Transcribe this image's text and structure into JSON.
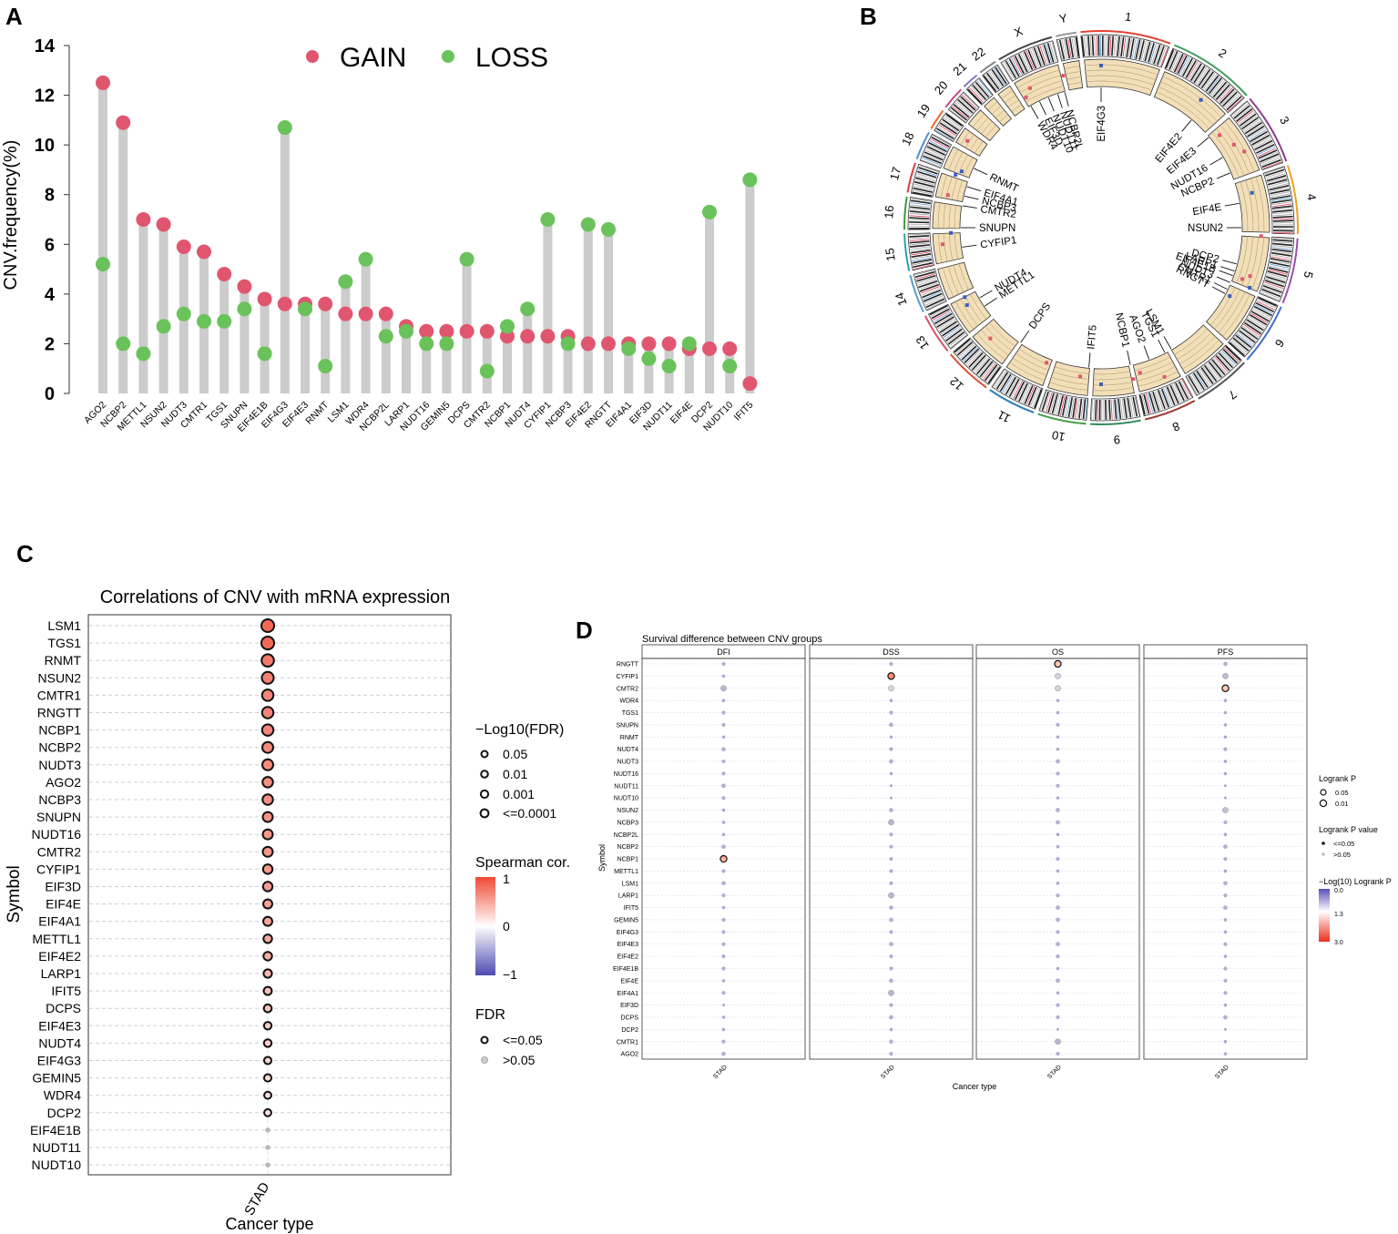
{
  "panel_labels": {
    "a": "A",
    "b": "B",
    "c": "C",
    "d": "D"
  },
  "colors": {
    "gain": "#e0566f",
    "loss": "#6ac25a",
    "stem": "#cccccc",
    "panel_border": "#333333",
    "grid": "#cfcfcf",
    "cor_high": "#ef4a35",
    "cor_mid": "#ffffff",
    "cor_low": "#4b4bb0",
    "ns_point": "#bbbbbb",
    "track_fill": "#f2dfb8"
  },
  "chart_data": [
    {
      "id": "A",
      "type": "scatter",
      "title": "",
      "xlabel": "",
      "ylabel": "CNV.frequency(%)",
      "ylim": [
        0,
        14
      ],
      "yticks": [
        0,
        2,
        4,
        6,
        8,
        10,
        12,
        14
      ],
      "legend": [
        "GAIN",
        "LOSS"
      ],
      "categories": [
        "AGO2",
        "NCBP2",
        "METTL1",
        "NSUN2",
        "NUDT3",
        "CMTR1",
        "TGS1",
        "SNUPN",
        "EIF4E1B",
        "EIF4G3",
        "EIF4E3",
        "RNMT",
        "LSM1",
        "WDR4",
        "NCBP2L",
        "LARP1",
        "NUDT16",
        "GEMIN5",
        "DCPS",
        "CMTR2",
        "NCBP1",
        "NUDT4",
        "CYFIP1",
        "NCBP3",
        "EIF4E2",
        "RNGTT",
        "EIF4A1",
        "EIF3D",
        "NUDT11",
        "EIF4E",
        "DCP2",
        "NUDT10",
        "IFIT5"
      ],
      "series": [
        {
          "name": "GAIN",
          "values": [
            12.5,
            10.9,
            7.0,
            6.8,
            5.9,
            5.7,
            4.8,
            4.3,
            3.8,
            3.6,
            3.6,
            3.6,
            3.2,
            3.2,
            3.2,
            2.7,
            2.5,
            2.5,
            2.5,
            2.5,
            2.3,
            2.3,
            2.3,
            2.3,
            2.0,
            2.0,
            2.0,
            2.0,
            2.0,
            1.8,
            1.8,
            1.8,
            0.4
          ]
        },
        {
          "name": "LOSS",
          "values": [
            5.2,
            2.0,
            1.6,
            2.7,
            3.2,
            2.9,
            2.9,
            3.4,
            1.6,
            10.7,
            3.4,
            1.1,
            4.5,
            5.4,
            2.3,
            2.5,
            2.0,
            2.0,
            5.4,
            0.9,
            2.7,
            3.4,
            7.0,
            2.0,
            6.8,
            6.6,
            1.8,
            1.4,
            1.1,
            2.0,
            7.3,
            1.1,
            8.6
          ]
        }
      ]
    },
    {
      "id": "B",
      "type": "other",
      "title": "",
      "chromosomes": [
        "1",
        "2",
        "3",
        "4",
        "5",
        "6",
        "7",
        "8",
        "9",
        "10",
        "11",
        "12",
        "13",
        "14",
        "15",
        "16",
        "17",
        "18",
        "19",
        "20",
        "21",
        "22",
        "X",
        "Y"
      ],
      "gene_labels": [
        "EIF4G3",
        "EIF4E2",
        "EIF4E3",
        "NUDT16",
        "NCBP2",
        "EIF4E",
        "NSUN2",
        "DCP2",
        "LARP1",
        "EIF4E1B",
        "NUDT3",
        "CMTR1",
        "RNGTT",
        "LSM1",
        "TGS1",
        "AGO2",
        "NCBP1",
        "IFIT5",
        "DCPS",
        "METTL1",
        "NUDT4",
        "CYFIP1",
        "SNUPN",
        "CMTR2",
        "NCBP3",
        "EIF4A1",
        "RNMT",
        "WDR4",
        "EIF3D",
        "NUDT10",
        "NUDT11",
        "NCBP2L"
      ]
    },
    {
      "id": "C",
      "type": "scatter",
      "title": "Correlations of CNV with mRNA expression",
      "xlabel": "Cancer type",
      "ylabel": "Symbol",
      "categories": [
        "STAD"
      ],
      "symbols": [
        "LSM1",
        "TGS1",
        "RNMT",
        "NSUN2",
        "CMTR1",
        "RNGTT",
        "NCBP1",
        "NCBP2",
        "NUDT3",
        "AGO2",
        "NCBP3",
        "SNUPN",
        "NUDT16",
        "CMTR2",
        "CYFIP1",
        "EIF3D",
        "EIF4E",
        "EIF4A1",
        "METTL1",
        "EIF4E2",
        "LARP1",
        "IFIT5",
        "DCPS",
        "EIF4E3",
        "NUDT4",
        "EIF4G3",
        "GEMIN5",
        "WDR4",
        "DCP2",
        "EIF4E1B",
        "NUDT11",
        "NUDT10"
      ],
      "spearman_cor": [
        0.62,
        0.62,
        0.55,
        0.52,
        0.5,
        0.5,
        0.5,
        0.48,
        0.48,
        0.46,
        0.45,
        0.44,
        0.43,
        0.42,
        0.42,
        0.4,
        0.38,
        0.37,
        0.35,
        0.33,
        0.3,
        0.26,
        0.24,
        0.22,
        0.2,
        0.18,
        0.16,
        0.14,
        0.12,
        0.02,
        0.01,
        0.01
      ],
      "neg_log10_fdr": [
        14,
        14,
        13,
        12,
        11,
        11,
        11,
        10,
        10,
        9,
        9,
        8,
        8,
        8,
        7,
        7,
        6,
        6,
        5,
        5,
        4.5,
        4,
        3.5,
        3,
        3,
        2.5,
        2.5,
        2,
        2,
        0.4,
        0.3,
        0.3
      ],
      "fdr_significant": [
        true,
        true,
        true,
        true,
        true,
        true,
        true,
        true,
        true,
        true,
        true,
        true,
        true,
        true,
        true,
        true,
        true,
        true,
        true,
        true,
        true,
        true,
        true,
        true,
        true,
        true,
        true,
        true,
        true,
        false,
        false,
        false
      ],
      "legends": {
        "size_title": "−Log10(FDR)",
        "size_labels": [
          "0.05",
          "0.01",
          "0.001",
          "<=0.0001"
        ],
        "color_title": "Spearman cor.",
        "color_ticks": [
          "1",
          "0",
          "−1"
        ],
        "fdr_title": "FDR",
        "fdr_labels": [
          "<=0.05",
          ">0.05"
        ]
      }
    },
    {
      "id": "D",
      "type": "scatter",
      "title": "Survival difference between CNV groups",
      "xlabel": "Cancer type",
      "ylabel": "Symbol",
      "facets": [
        "DFI",
        "DSS",
        "OS",
        "PFS"
      ],
      "categories": [
        "STAD"
      ],
      "symbols": [
        "RNGTT",
        "CYFIP1",
        "CMTR2",
        "WDR4",
        "TGS1",
        "SNUPN",
        "RNMT",
        "NUDT4",
        "NUDT3",
        "NUDT16",
        "NUDT11",
        "NUDT10",
        "NSUN2",
        "NCBP3",
        "NCBP2L",
        "NCBP2",
        "NCBP1",
        "METTL1",
        "LSM1",
        "LARP1",
        "IFIT5",
        "GEMIN5",
        "EIF4G3",
        "EIF4E3",
        "EIF4E2",
        "EIF4E1B",
        "EIF4E",
        "EIF4A1",
        "EIF3D",
        "DCPS",
        "DCP2",
        "CMTR1",
        "AGO2"
      ],
      "neg_log10_logrank_p": {
        "DFI": [
          0.3,
          0.2,
          0.5,
          0.2,
          0.3,
          0.3,
          0.2,
          0.4,
          0.3,
          0.3,
          0.4,
          0.3,
          0.2,
          0.2,
          0.2,
          0.4,
          1.5,
          0.3,
          0.4,
          0.3,
          0.2,
          0.3,
          0.3,
          0.3,
          0.3,
          0.3,
          0.2,
          0.3,
          0.1,
          0.2,
          0.2,
          0.3,
          0.4
        ],
        "DSS": [
          0.3,
          1.8,
          1.2,
          0.2,
          0.3,
          0.4,
          0.2,
          0.3,
          0.4,
          0.2,
          0.1,
          0.1,
          0.4,
          0.5,
          0.3,
          0.3,
          0.3,
          0.3,
          0.3,
          0.5,
          0.4,
          0.4,
          0.3,
          0.4,
          0.3,
          0.3,
          0.4,
          0.5,
          0.3,
          0.4,
          0.2,
          0.4,
          0.3
        ],
        "OS": [
          1.3,
          1.1,
          1.1,
          0.2,
          0.2,
          0.3,
          0.2,
          0.2,
          0.4,
          0.3,
          0.3,
          0.2,
          0.4,
          0.4,
          0.2,
          0.2,
          0.3,
          0.2,
          0.2,
          0.3,
          0.4,
          0.4,
          0.3,
          0.4,
          0.3,
          0.2,
          0.4,
          0.2,
          0.3,
          0.3,
          0.1,
          0.5,
          0.3
        ],
        "PFS": [
          0.4,
          0.6,
          1.3,
          0.2,
          0.2,
          0.2,
          0.2,
          0.3,
          0.2,
          0.2,
          0.1,
          0.1,
          0.8,
          0.3,
          0.2,
          0.4,
          0.3,
          0.2,
          0.4,
          0.3,
          0.4,
          0.2,
          0.2,
          0.3,
          0.2,
          0.3,
          0.3,
          0.3,
          0.2,
          0.4,
          0.1,
          0.2,
          0.2
        ]
      },
      "legends": {
        "size_title": "Logrank P",
        "size_labels": [
          "0.05",
          "0.01"
        ],
        "value_title": "Logrank P value",
        "value_labels": [
          "<=0.05",
          ">0.05"
        ],
        "color_title": "−Log(10) Logrank P",
        "color_ticks": [
          "0.0",
          "1.3",
          "3.0"
        ]
      }
    }
  ]
}
